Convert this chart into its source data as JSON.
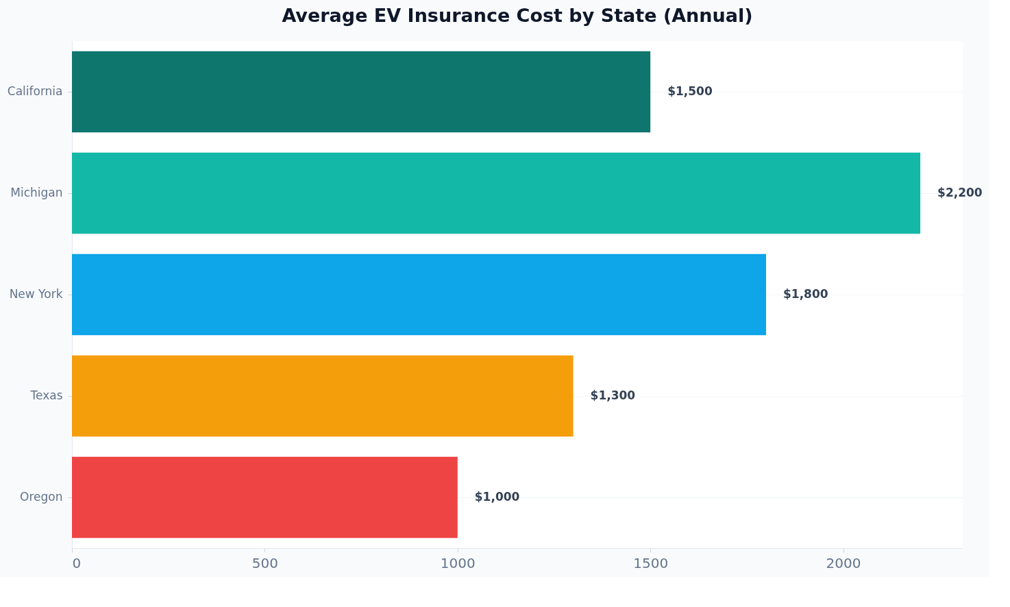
{
  "chart_data": {
    "type": "bar",
    "orientation": "horizontal",
    "title": "Average EV Insurance Cost by State (Annual)",
    "categories": [
      "California",
      "Michigan",
      "New York",
      "Texas",
      "Oregon"
    ],
    "values": [
      1500,
      2200,
      1800,
      1300,
      1000
    ],
    "colors": [
      "#0f766e",
      "#14b8a6",
      "#0ea5e9",
      "#f59e0b",
      "#ef4444"
    ],
    "value_labels": [
      "$1,500",
      "$2,200",
      "$1,800",
      "$1,300",
      "$1,000"
    ],
    "xlim": [
      0,
      2310
    ],
    "xticks": [
      0,
      500,
      1000,
      1500,
      2000
    ],
    "grid": "y"
  }
}
